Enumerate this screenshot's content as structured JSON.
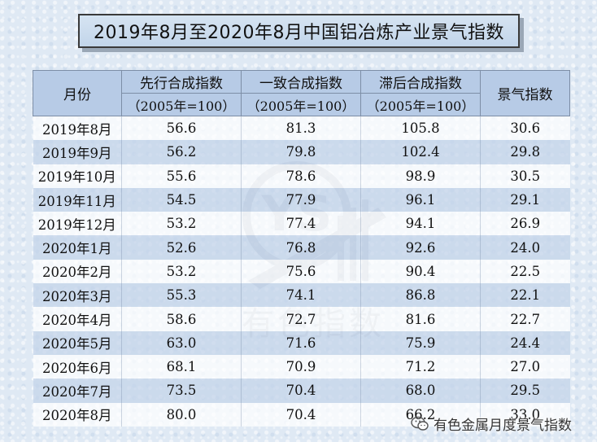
{
  "title": "2019年8月至2020年8月中国铝冶炼产业景气指数",
  "table": {
    "headers": {
      "month": "月份",
      "leading": "先行合成指数",
      "coincident": "一致合成指数",
      "lagging": "滞后合成指数",
      "climate": "景气指数",
      "base_note": "（2005年=100）"
    },
    "rows": [
      {
        "month": "2019年8月",
        "leading": "56.6",
        "coincident": "81.3",
        "lagging": "105.8",
        "climate": "30.6"
      },
      {
        "month": "2019年9月",
        "leading": "56.2",
        "coincident": "79.8",
        "lagging": "102.4",
        "climate": "29.8"
      },
      {
        "month": "2019年10月",
        "leading": "55.6",
        "coincident": "78.6",
        "lagging": "98.9",
        "climate": "30.5"
      },
      {
        "month": "2019年11月",
        "leading": "54.5",
        "coincident": "77.9",
        "lagging": "96.1",
        "climate": "29.1"
      },
      {
        "month": "2019年12月",
        "leading": "53.2",
        "coincident": "77.4",
        "lagging": "94.1",
        "climate": "26.9"
      },
      {
        "month": "2020年1月",
        "leading": "52.6",
        "coincident": "76.8",
        "lagging": "92.6",
        "climate": "24.0"
      },
      {
        "month": "2020年2月",
        "leading": "53.2",
        "coincident": "75.6",
        "lagging": "90.4",
        "climate": "22.5"
      },
      {
        "month": "2020年3月",
        "leading": "55.3",
        "coincident": "74.1",
        "lagging": "86.8",
        "climate": "22.1"
      },
      {
        "month": "2020年4月",
        "leading": "58.6",
        "coincident": "72.7",
        "lagging": "81.6",
        "climate": "22.7"
      },
      {
        "month": "2020年5月",
        "leading": "63.0",
        "coincident": "71.6",
        "lagging": "75.9",
        "climate": "24.4"
      },
      {
        "month": "2020年6月",
        "leading": "68.1",
        "coincident": "70.9",
        "lagging": "71.2",
        "climate": "27.0"
      },
      {
        "month": "2020年7月",
        "leading": "73.5",
        "coincident": "70.4",
        "lagging": "68.0",
        "climate": "29.5"
      },
      {
        "month": "2020年8月",
        "leading": "80.0",
        "coincident": "70.4",
        "lagging": "66.2",
        "climate": "33.0"
      }
    ]
  },
  "watermark": {
    "text": "有色指数",
    "logo_letters": "YS"
  },
  "footer": {
    "icon": "wechat-icon",
    "text": "有色金属月度景气指数"
  },
  "colors": {
    "header_bg": "#b7cbe6",
    "row_alt_bg": "#c4d4ea",
    "page_bg": "#dfe9f4"
  }
}
